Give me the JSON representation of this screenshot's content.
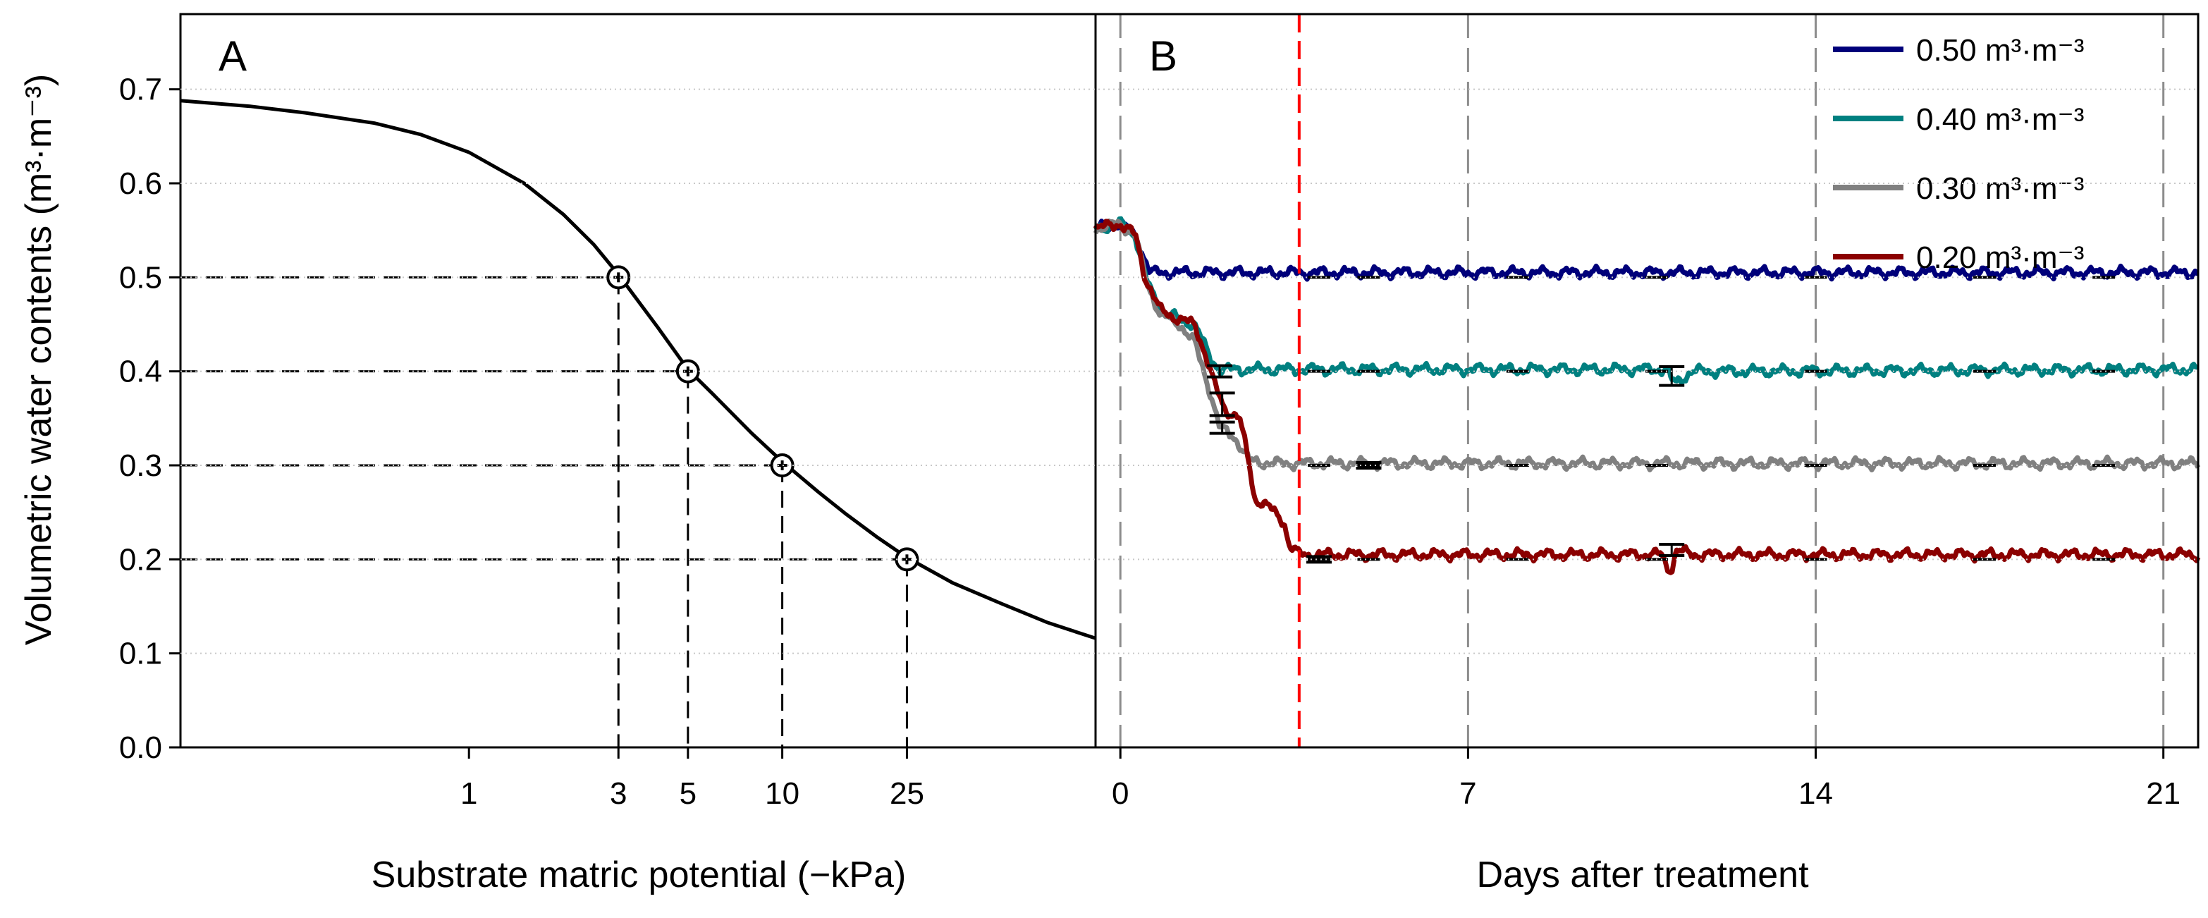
{
  "chart_data": [
    {
      "panel": "A",
      "type": "line",
      "xscale": "log",
      "xlabel": "Substrate matric potential (−kPa)",
      "ylabel": "Volumetric water contents (m³·m⁻³)",
      "ylim": [
        0,
        0.78
      ],
      "xlim": [
        0.12,
        100
      ],
      "xticks": [
        1,
        3,
        5,
        10,
        25
      ],
      "xtick_labels": [
        "1",
        "3",
        "5",
        "10",
        "25"
      ],
      "yticks": [
        0.0,
        0.1,
        0.2,
        0.3,
        0.4,
        0.5,
        0.6,
        0.7
      ],
      "ytick_labels": [
        "0.0",
        "0.1",
        "0.2",
        "0.3",
        "0.4",
        "0.5",
        "0.6",
        "0.7"
      ],
      "grid": "horizontal-dotted",
      "curve": {
        "x": [
          0.12,
          0.2,
          0.3,
          0.5,
          0.7,
          1,
          1.5,
          2,
          2.5,
          3,
          4,
          5,
          6,
          8,
          10,
          13,
          16,
          20,
          25,
          35,
          50,
          70,
          100
        ],
        "y": [
          0.688,
          0.682,
          0.675,
          0.664,
          0.652,
          0.633,
          0.6,
          0.567,
          0.535,
          0.503,
          0.447,
          0.402,
          0.376,
          0.334,
          0.304,
          0.272,
          0.248,
          0.224,
          0.202,
          0.175,
          0.153,
          0.133,
          0.116
        ]
      },
      "markers": [
        {
          "x": 3,
          "y": 0.5
        },
        {
          "x": 5,
          "y": 0.4
        },
        {
          "x": 10,
          "y": 0.3
        },
        {
          "x": 25,
          "y": 0.2
        }
      ]
    },
    {
      "panel": "B",
      "type": "line",
      "xlabel": "Days after treatment",
      "ylim": [
        0,
        0.78
      ],
      "xlim": [
        -0.5,
        21.7
      ],
      "xticks": [
        0,
        7,
        14,
        21
      ],
      "xtick_labels": [
        "0",
        "7",
        "14",
        "21"
      ],
      "vlines": [
        0,
        7,
        14,
        21
      ],
      "treatment_line_x": 3.6,
      "legend_position": "top-right",
      "series": [
        {
          "name": "0.50 m³·m⁻³",
          "color": "#00007a",
          "target": 0.5,
          "x": [
            -0.5,
            0,
            0.3,
            0.6,
            0.9,
            21.7
          ],
          "y": [
            0.552,
            0.557,
            0.545,
            0.505,
            0.505,
            0.505
          ]
        },
        {
          "name": "0.40 m³·m⁻³",
          "color": "#008080",
          "target": 0.4,
          "x": [
            -0.5,
            0,
            0.3,
            0.5,
            0.8,
            1.2,
            1.5,
            1.8,
            2.0,
            11.0,
            11.1,
            11.2,
            11.5,
            21.7
          ],
          "y": [
            0.552,
            0.557,
            0.545,
            0.5,
            0.465,
            0.455,
            0.45,
            0.415,
            0.402,
            0.402,
            0.39,
            0.388,
            0.4,
            0.402
          ]
        },
        {
          "name": "0.30 m³·m⁻³",
          "color": "#808080",
          "target": 0.3,
          "x": [
            -0.5,
            0,
            0.3,
            0.5,
            0.8,
            1.2,
            1.5,
            1.8,
            2.0,
            2.3,
            2.6,
            3.0,
            21.7
          ],
          "y": [
            0.552,
            0.557,
            0.545,
            0.5,
            0.46,
            0.45,
            0.43,
            0.38,
            0.34,
            0.33,
            0.305,
            0.302,
            0.302
          ]
        },
        {
          "name": "0.20 m³·m⁻³",
          "color": "#8b0000",
          "target": 0.2,
          "x": [
            -0.5,
            0,
            0.3,
            0.5,
            0.8,
            1.2,
            1.5,
            1.7,
            1.9,
            2.1,
            2.4,
            2.6,
            2.7,
            3.0,
            3.3,
            3.4,
            3.6,
            10.9,
            11.0,
            11.1,
            11.2,
            11.5,
            21.7
          ],
          "y": [
            0.552,
            0.557,
            0.545,
            0.5,
            0.465,
            0.455,
            0.45,
            0.42,
            0.385,
            0.36,
            0.35,
            0.3,
            0.265,
            0.255,
            0.24,
            0.215,
            0.205,
            0.205,
            0.192,
            0.19,
            0.21,
            0.205,
            0.205
          ]
        }
      ],
      "error_bars": [
        {
          "x": 2.0,
          "y": 0.4,
          "err": 0.006
        },
        {
          "x": 2.05,
          "y": 0.365,
          "err": 0.012
        },
        {
          "x": 2.05,
          "y": 0.34,
          "err": 0.006
        },
        {
          "x": 11.1,
          "y": 0.395,
          "err": 0.01
        },
        {
          "x": 11.1,
          "y": 0.21,
          "err": 0.006
        },
        {
          "x": 4.0,
          "y": 0.2,
          "err": 0.003
        },
        {
          "x": 5.0,
          "y": 0.3,
          "err": 0.003
        }
      ]
    }
  ]
}
